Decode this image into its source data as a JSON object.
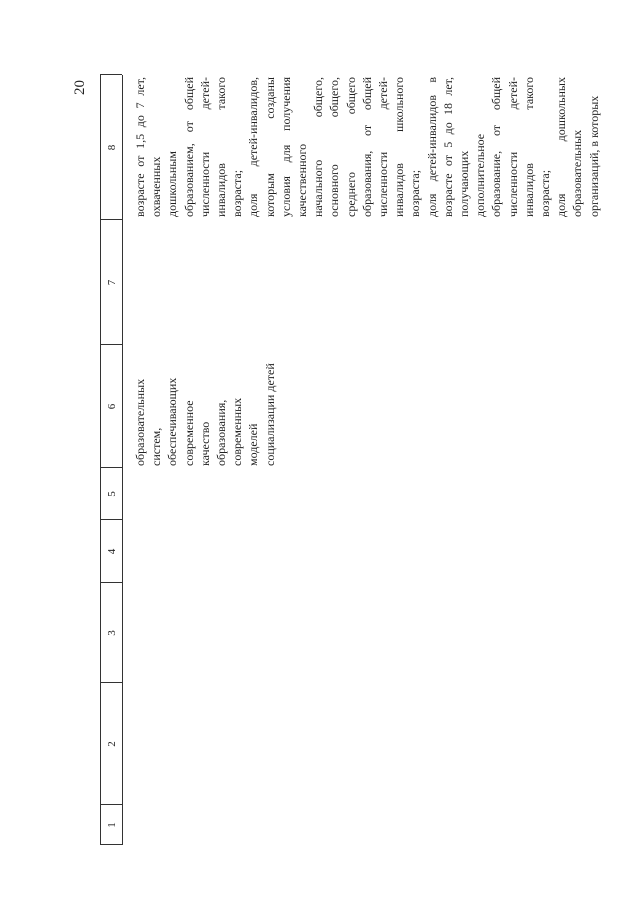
{
  "page_number": "20",
  "table": {
    "columns": [
      "1",
      "2",
      "3",
      "4",
      "5",
      "6",
      "7",
      "8"
    ],
    "rows": [
      {
        "column_6": [
          "образовательных",
          "систем,",
          "обеспечивающих",
          "современное",
          "качество",
          "образования,",
          "современных",
          "моделей",
          "социализации детей"
        ],
        "column_8": [
          "возрасте от 1,5 до 7 лет,",
          "охваченных",
          "дошкольным",
          "образованием, от общей",
          "численности детей-",
          "инвалидов такого",
          "возраста;",
          "доля детей-инвалидов,",
          "которым созданы",
          "условия для получения",
          "качественного",
          "начального общего,",
          "основного общего,",
          "среднего общего",
          "образования, от общей",
          "численности детей-",
          "инвалидов школьного",
          "возраста;",
          "доля детей-инвалидов в",
          "возрасте от 5 до 18 лет,",
          "получающих",
          "дополнительное",
          "образование, от общей",
          "численности детей-",
          "инвалидов такого",
          "возраста;",
          "доля дошкольных",
          "образовательных",
          "организаций, в которых"
        ]
      }
    ]
  }
}
